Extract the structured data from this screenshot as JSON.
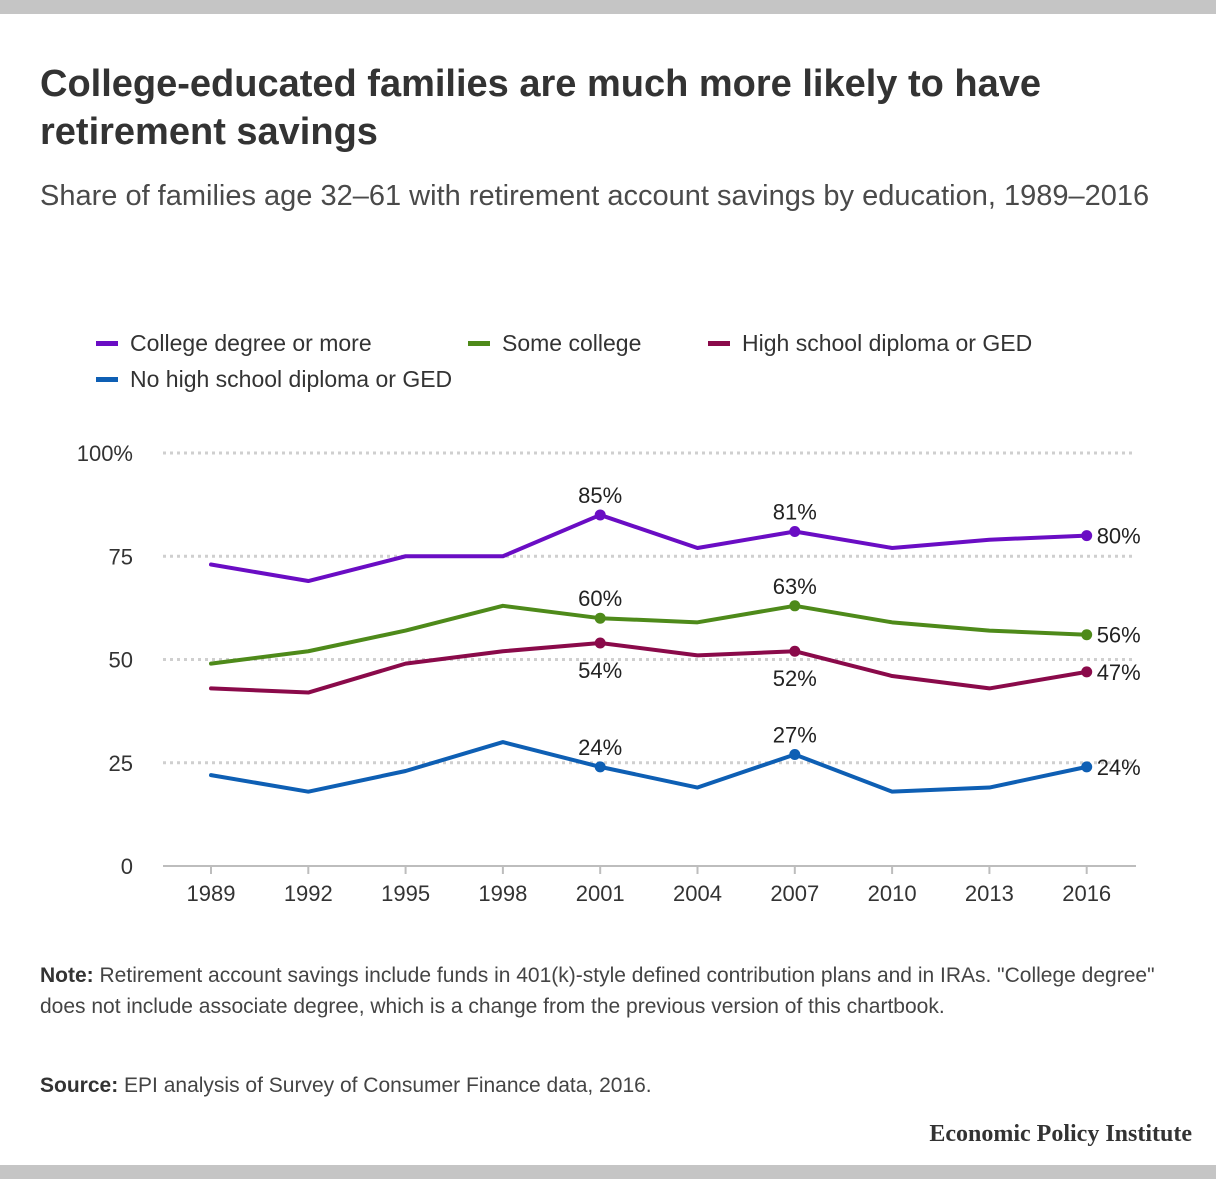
{
  "title": "College-educated families are much more likely to have retirement savings",
  "subtitle": "Share of families age 32–61 with retirement account savings by education, 1989–2016",
  "note": {
    "label": "Note:",
    "text": "Retirement account savings include funds in 401(k)-style defined contribution plans and in IRAs. \"College degree\" does not include associate degree, which is a change from the previous version of this chartbook."
  },
  "source": {
    "label": "Source:",
    "text": "EPI analysis of Survey of Consumer Finance data, 2016."
  },
  "brand": "Economic Policy Institute",
  "chart_data": {
    "type": "line",
    "title": "",
    "xlabel": "",
    "ylabel": "",
    "x": [
      "1989",
      "1992",
      "1995",
      "1998",
      "2001",
      "2004",
      "2007",
      "2010",
      "2013",
      "2016"
    ],
    "ylim": [
      0,
      100
    ],
    "yticks": [
      0,
      25,
      50,
      75,
      100
    ],
    "ytick_labels": [
      "0",
      "25",
      "50",
      "75",
      "100%"
    ],
    "grid": true,
    "legend_position": "top-left",
    "series": [
      {
        "name": "College degree or more",
        "color": "#6a0dc4",
        "values": [
          73,
          69,
          75,
          75,
          85,
          77,
          81,
          77,
          79,
          80
        ],
        "labels": [
          null,
          null,
          null,
          null,
          "85%",
          null,
          "81%",
          null,
          null,
          "80%"
        ]
      },
      {
        "name": "Some college",
        "color": "#4e8a1a",
        "values": [
          49,
          52,
          57,
          63,
          60,
          59,
          63,
          59,
          57,
          56
        ],
        "labels": [
          null,
          null,
          null,
          null,
          "60%",
          null,
          "63%",
          null,
          null,
          "56%"
        ]
      },
      {
        "name": "High school diploma or GED",
        "color": "#8a0a4a",
        "values": [
          43,
          42,
          49,
          52,
          54,
          51,
          52,
          46,
          43,
          47
        ],
        "labels": [
          null,
          null,
          null,
          null,
          "54%",
          null,
          "52%",
          null,
          null,
          "47%"
        ]
      },
      {
        "name": "No high school diploma or GED",
        "color": "#0e5fb4",
        "values": [
          22,
          18,
          23,
          30,
          24,
          19,
          27,
          18,
          19,
          24
        ],
        "labels": [
          null,
          null,
          null,
          null,
          "24%",
          null,
          "27%",
          null,
          null,
          "24%"
        ]
      }
    ]
  }
}
